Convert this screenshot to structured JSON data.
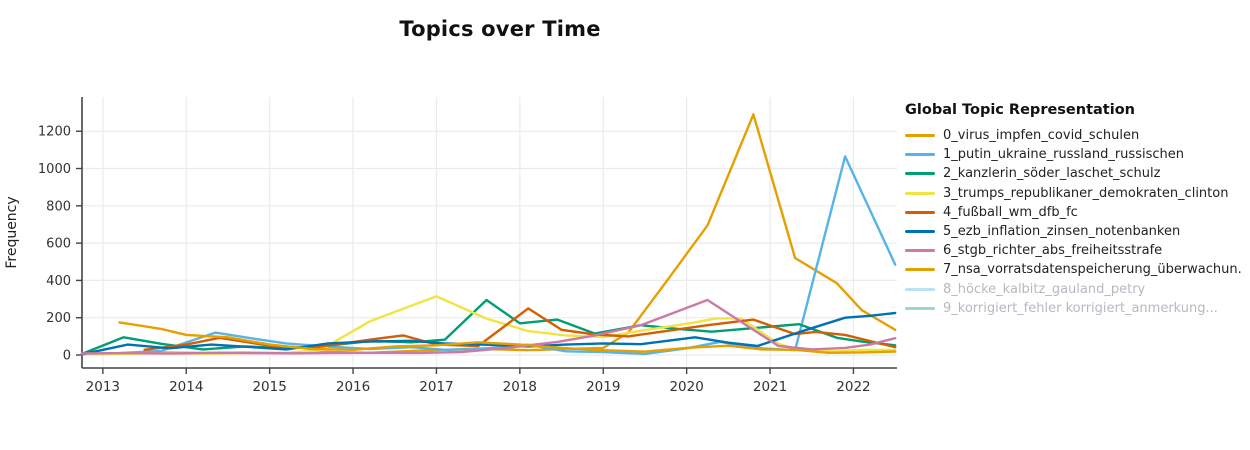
{
  "title": "Topics over Time",
  "legend": {
    "title": "Global Topic Representation"
  },
  "chart_data": {
    "type": "line",
    "title": "Topics over Time",
    "xlabel": "",
    "ylabel": "Frequency",
    "x_range": [
      2012.75,
      2022.55
    ],
    "ylim": [
      -70,
      1383
    ],
    "x_ticks": [
      2013,
      2014,
      2015,
      2016,
      2017,
      2018,
      2019,
      2020,
      2021,
      2022
    ],
    "y_ticks": [
      0,
      200,
      400,
      600,
      800,
      1000,
      1200
    ],
    "grid": true,
    "legend_position": "right",
    "series": [
      {
        "name": "0_virus_impfen_covid_schulen",
        "color": "#E69F00",
        "hidden": false,
        "points": [
          [
            2012.75,
            3
          ],
          [
            2013.2,
            8
          ],
          [
            2013.7,
            14
          ],
          [
            2014.2,
            10
          ],
          [
            2014.7,
            13
          ],
          [
            2015.2,
            10
          ],
          [
            2015.7,
            16
          ],
          [
            2016.2,
            12
          ],
          [
            2016.7,
            22
          ],
          [
            2017.1,
            28
          ],
          [
            2017.6,
            32
          ],
          [
            2018.1,
            26
          ],
          [
            2018.55,
            32
          ],
          [
            2019.0,
            38
          ],
          [
            2019.3,
            120
          ],
          [
            2019.75,
            390
          ],
          [
            2020.25,
            695
          ],
          [
            2020.8,
            1290
          ],
          [
            2021.3,
            520
          ],
          [
            2021.8,
            385
          ],
          [
            2022.1,
            240
          ],
          [
            2022.5,
            135
          ]
        ]
      },
      {
        "name": "1_putin_ukraine_russland_russischen",
        "color": "#56B4E9",
        "hidden": false,
        "points": [
          [
            2012.75,
            5
          ],
          [
            2013.2,
            10
          ],
          [
            2013.7,
            22
          ],
          [
            2014.35,
            120
          ],
          [
            2014.8,
            88
          ],
          [
            2015.2,
            62
          ],
          [
            2015.7,
            45
          ],
          [
            2016.2,
            32
          ],
          [
            2016.7,
            42
          ],
          [
            2017.1,
            28
          ],
          [
            2017.6,
            36
          ],
          [
            2018.1,
            55
          ],
          [
            2018.55,
            20
          ],
          [
            2019.0,
            16
          ],
          [
            2019.5,
            6
          ],
          [
            2020.0,
            36
          ],
          [
            2020.4,
            70
          ],
          [
            2020.9,
            36
          ],
          [
            2021.3,
            26
          ],
          [
            2021.9,
            1065
          ],
          [
            2022.5,
            485
          ]
        ]
      },
      {
        "name": "2_kanzlerin_söder_laschet_schulz",
        "color": "#009E73",
        "hidden": false,
        "points": [
          [
            2012.75,
            6
          ],
          [
            2013.25,
            95
          ],
          [
            2013.7,
            60
          ],
          [
            2014.2,
            30
          ],
          [
            2014.7,
            46
          ],
          [
            2015.2,
            36
          ],
          [
            2015.7,
            50
          ],
          [
            2016.2,
            75
          ],
          [
            2016.7,
            68
          ],
          [
            2017.1,
            82
          ],
          [
            2017.6,
            295
          ],
          [
            2018.0,
            170
          ],
          [
            2018.45,
            190
          ],
          [
            2018.9,
            115
          ],
          [
            2019.45,
            160
          ],
          [
            2019.9,
            140
          ],
          [
            2020.3,
            125
          ],
          [
            2020.9,
            148
          ],
          [
            2021.35,
            165
          ],
          [
            2021.8,
            92
          ],
          [
            2022.1,
            72
          ],
          [
            2022.5,
            52
          ]
        ]
      },
      {
        "name": "3_trumps_republikaner_demokraten_clinton",
        "color": "#F0E442",
        "hidden": false,
        "points": [
          [
            2012.75,
            3
          ],
          [
            2013.2,
            6
          ],
          [
            2013.7,
            9
          ],
          [
            2014.2,
            7
          ],
          [
            2014.7,
            10
          ],
          [
            2015.2,
            12
          ],
          [
            2015.6,
            25
          ],
          [
            2016.2,
            180
          ],
          [
            2017.0,
            315
          ],
          [
            2017.6,
            195
          ],
          [
            2018.1,
            128
          ],
          [
            2018.55,
            105
          ],
          [
            2019.0,
            96
          ],
          [
            2019.45,
            130
          ],
          [
            2020.1,
            175
          ],
          [
            2020.35,
            196
          ],
          [
            2020.65,
            196
          ],
          [
            2021.1,
            60
          ],
          [
            2021.35,
            26
          ],
          [
            2021.8,
            20
          ],
          [
            2022.1,
            28
          ],
          [
            2022.5,
            27
          ]
        ]
      },
      {
        "name": "4_fußball_wm_dfb_fc",
        "color": "#D55E00",
        "hidden": false,
        "points": [
          [
            2013.5,
            28
          ],
          [
            2014.0,
            56
          ],
          [
            2014.4,
            92
          ],
          [
            2015.0,
            50
          ],
          [
            2015.5,
            38
          ],
          [
            2016.2,
            82
          ],
          [
            2016.6,
            105
          ],
          [
            2017.0,
            56
          ],
          [
            2017.5,
            48
          ],
          [
            2018.1,
            250
          ],
          [
            2018.5,
            135
          ],
          [
            2018.9,
            110
          ],
          [
            2019.3,
            100
          ],
          [
            2019.9,
            138
          ],
          [
            2020.25,
            160
          ],
          [
            2020.8,
            190
          ],
          [
            2021.3,
            112
          ],
          [
            2021.55,
            124
          ],
          [
            2021.9,
            108
          ],
          [
            2022.5,
            42
          ]
        ]
      },
      {
        "name": "5_ezb_inflation_zinsen_notenbanken",
        "color": "#0072B2",
        "hidden": false,
        "points": [
          [
            2012.75,
            4
          ],
          [
            2013.3,
            56
          ],
          [
            2013.8,
            36
          ],
          [
            2014.3,
            56
          ],
          [
            2014.8,
            42
          ],
          [
            2015.2,
            30
          ],
          [
            2015.7,
            62
          ],
          [
            2016.2,
            72
          ],
          [
            2016.7,
            76
          ],
          [
            2017.1,
            62
          ],
          [
            2017.6,
            55
          ],
          [
            2018.1,
            46
          ],
          [
            2018.55,
            56
          ],
          [
            2019.0,
            62
          ],
          [
            2019.45,
            58
          ],
          [
            2020.1,
            95
          ],
          [
            2020.5,
            66
          ],
          [
            2020.85,
            48
          ],
          [
            2021.4,
            130
          ],
          [
            2021.9,
            200
          ],
          [
            2022.2,
            210
          ],
          [
            2022.5,
            225
          ]
        ]
      },
      {
        "name": "6_stgb_richter_abs_freiheitsstrafe",
        "color": "#CC79A7",
        "hidden": false,
        "points": [
          [
            2012.75,
            8
          ],
          [
            2013.3,
            10
          ],
          [
            2013.8,
            8
          ],
          [
            2014.3,
            12
          ],
          [
            2014.8,
            10
          ],
          [
            2015.3,
            9
          ],
          [
            2015.8,
            11
          ],
          [
            2016.3,
            12
          ],
          [
            2016.8,
            11
          ],
          [
            2017.3,
            16
          ],
          [
            2017.8,
            36
          ],
          [
            2018.45,
            70
          ],
          [
            2018.9,
            105
          ],
          [
            2019.45,
            160
          ],
          [
            2020.25,
            295
          ],
          [
            2021.1,
            48
          ],
          [
            2021.5,
            30
          ],
          [
            2021.9,
            38
          ],
          [
            2022.2,
            56
          ],
          [
            2022.5,
            90
          ]
        ]
      },
      {
        "name": "7_nsa_vorratsdatenspeicherung_überwachun.",
        "color": "#E69F00",
        "hidden": false,
        "points": [
          [
            2013.2,
            175
          ],
          [
            2013.7,
            140
          ],
          [
            2014.0,
            108
          ],
          [
            2014.5,
            95
          ],
          [
            2015.0,
            56
          ],
          [
            2015.5,
            32
          ],
          [
            2016.0,
            28
          ],
          [
            2016.5,
            46
          ],
          [
            2017.0,
            52
          ],
          [
            2017.5,
            68
          ],
          [
            2018.0,
            56
          ],
          [
            2018.5,
            38
          ],
          [
            2019.0,
            26
          ],
          [
            2019.5,
            18
          ],
          [
            2020.0,
            38
          ],
          [
            2020.5,
            50
          ],
          [
            2020.9,
            30
          ],
          [
            2021.3,
            28
          ],
          [
            2021.7,
            12
          ],
          [
            2022.1,
            14
          ],
          [
            2022.5,
            18
          ]
        ]
      },
      {
        "name": "8_höcke_kalbitz_gauland_petry",
        "color": "#56B4E9",
        "hidden": true,
        "points": []
      },
      {
        "name": "9_korrigiert_fehler korrigiert_anmerkung...",
        "color": "#009E73",
        "hidden": true,
        "points": []
      }
    ]
  },
  "style": {
    "grid_color": "#ebebeb",
    "axis_color": "#444444",
    "tick_label_color": "#333333",
    "plot_bg": "#ffffff"
  }
}
